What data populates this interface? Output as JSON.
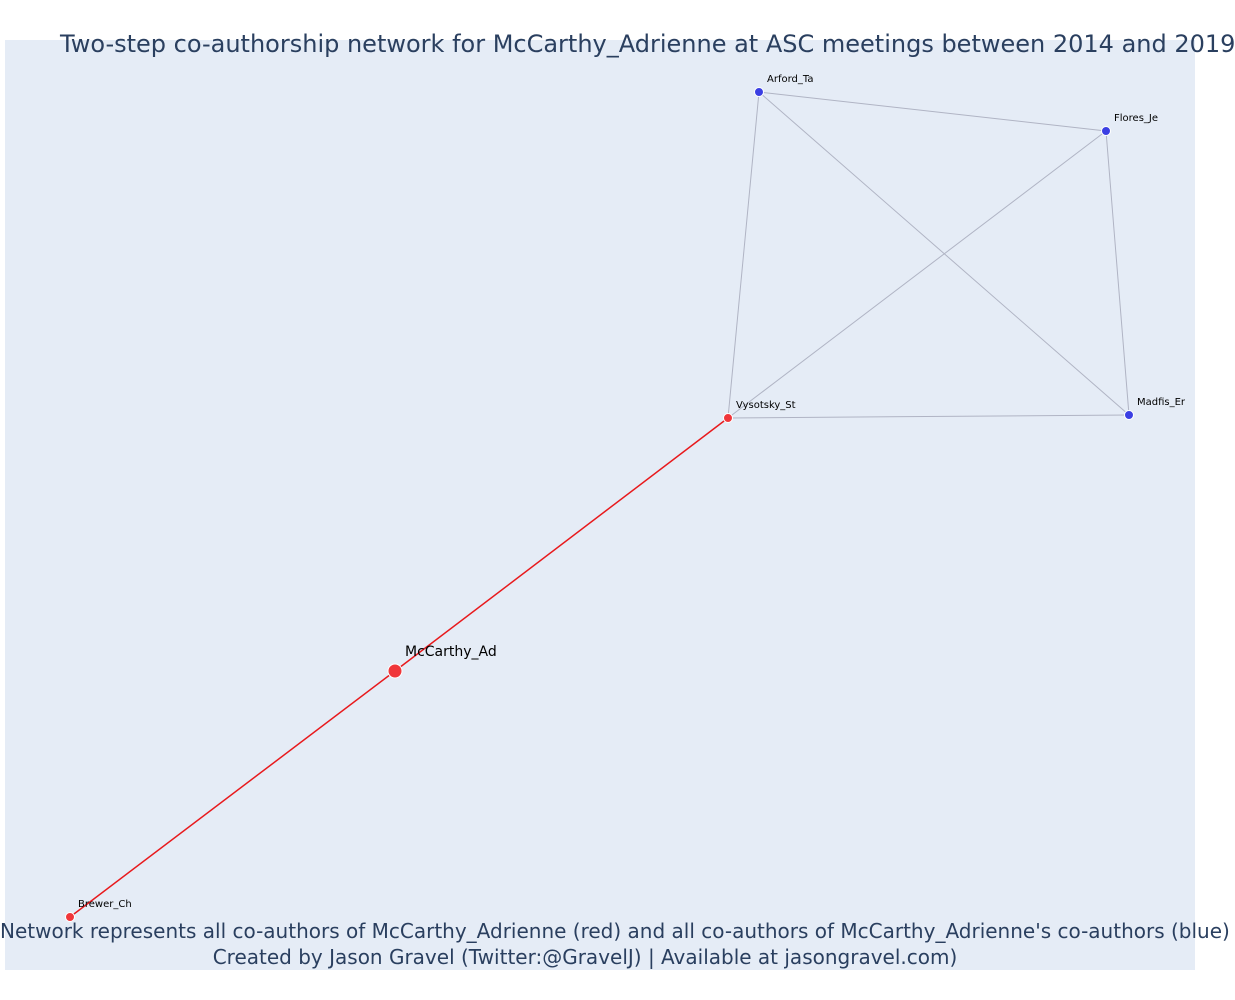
{
  "title": "Two-step co-authorship network for McCarthy_Adrienne at ASC meetings between 2014 and 2019",
  "caption": {
    "line1": "Network represents all co-authors of McCarthy_Adrienne (red) and all co-authors of McCarthy_Adrienne's co-authors (blue)",
    "line2": "Created by Jason Gravel (Twitter:@GravelJ) | Available at jasongravel.com)"
  },
  "colors": {
    "background": "#e5ecf6",
    "direct_coauthor": "#f0363a",
    "second_step_coauthor": "#3b3fe3",
    "direct_edge": "#e8191c",
    "indirect_edge": "#b0b4c4",
    "text": "#2a3f5f"
  },
  "network": {
    "focal": "McCarthy_Ad",
    "nodes": [
      {
        "id": "McCarthy_Ad",
        "label": "McCarthy_Ad",
        "group": "focal"
      },
      {
        "id": "Brewer_Ch",
        "label": "Brewer_Ch",
        "group": "coauthor"
      },
      {
        "id": "Vysotsky_St",
        "label": "Vysotsky_St",
        "group": "coauthor"
      },
      {
        "id": "Arford_Ta",
        "label": "Arford_Ta",
        "group": "second_step"
      },
      {
        "id": "Flores_Je",
        "label": "Flores_Je",
        "group": "second_step"
      },
      {
        "id": "Madfis_Er",
        "label": "Madfis_Er",
        "group": "second_step"
      }
    ],
    "edges": [
      {
        "source": "McCarthy_Ad",
        "target": "Brewer_Ch",
        "type": "direct"
      },
      {
        "source": "McCarthy_Ad",
        "target": "Vysotsky_St",
        "type": "direct"
      },
      {
        "source": "Vysotsky_St",
        "target": "Arford_Ta",
        "type": "indirect"
      },
      {
        "source": "Vysotsky_St",
        "target": "Flores_Je",
        "type": "indirect"
      },
      {
        "source": "Vysotsky_St",
        "target": "Madfis_Er",
        "type": "indirect"
      },
      {
        "source": "Arford_Ta",
        "target": "Flores_Je",
        "type": "indirect"
      },
      {
        "source": "Arford_Ta",
        "target": "Madfis_Er",
        "type": "indirect"
      },
      {
        "source": "Flores_Je",
        "target": "Madfis_Er",
        "type": "indirect"
      }
    ]
  }
}
